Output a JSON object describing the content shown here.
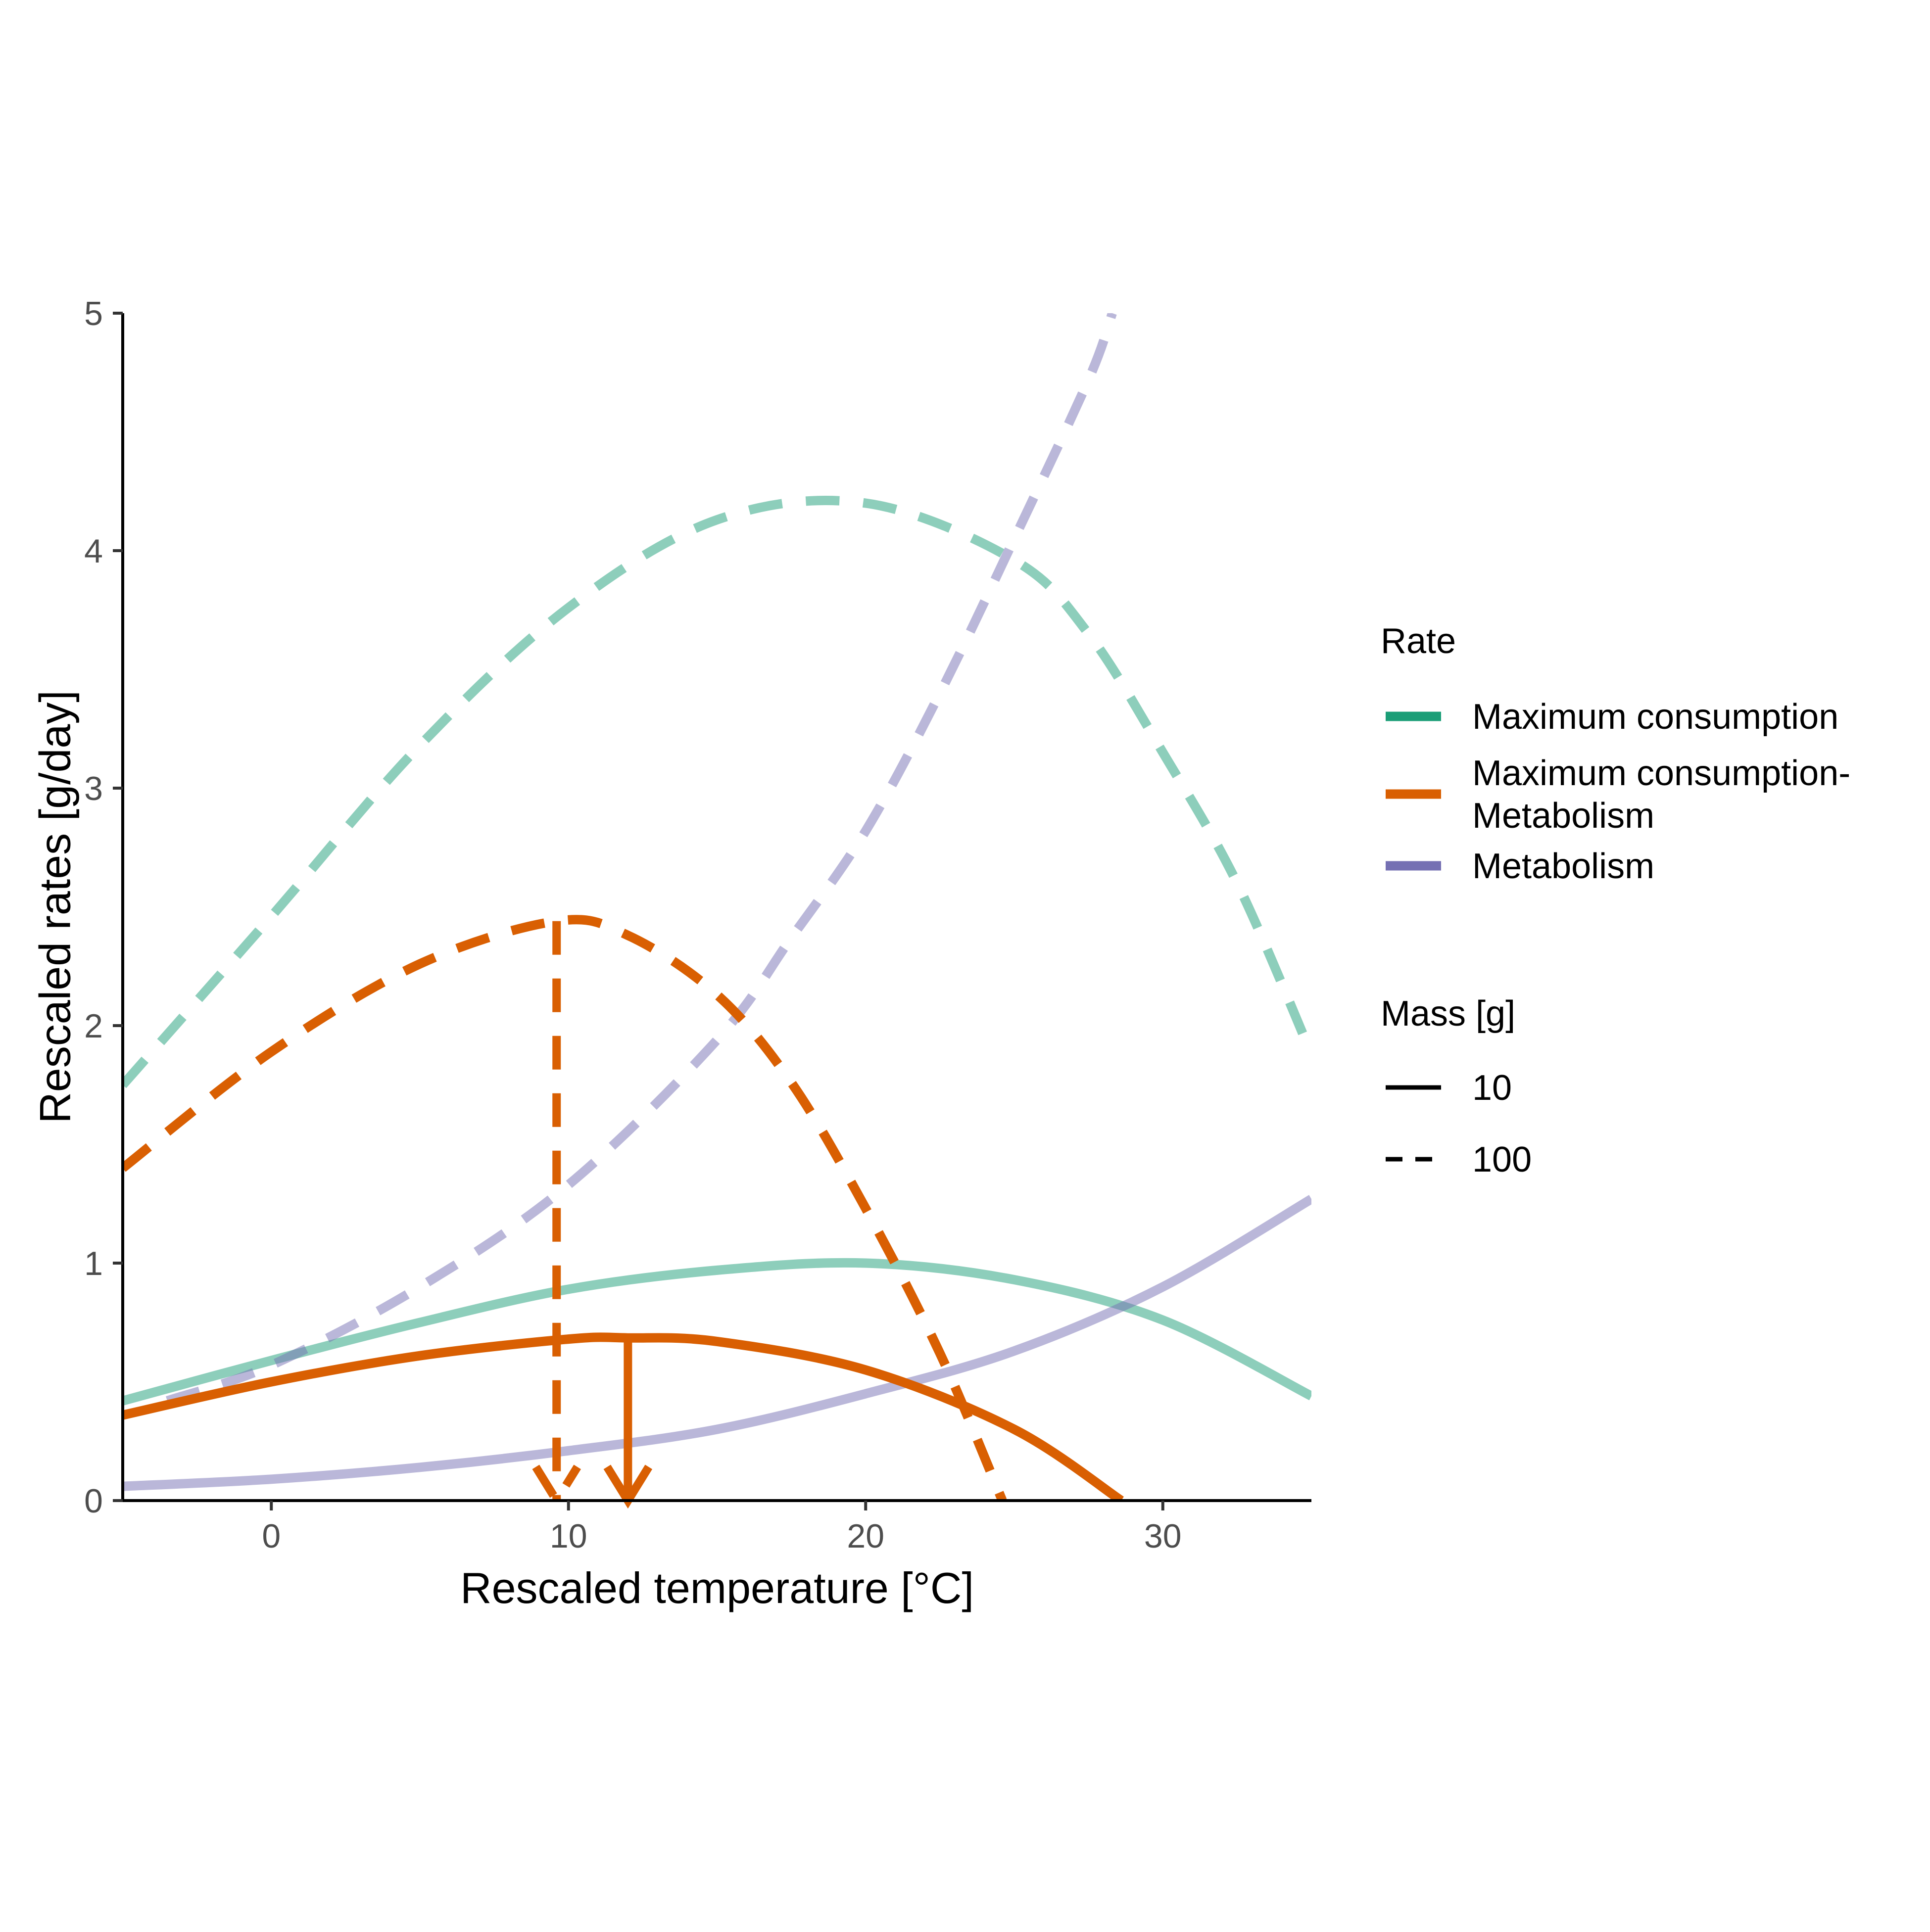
{
  "chart_data": {
    "type": "line",
    "title": "",
    "xlabel": "Rescaled temperature [°C]",
    "ylabel": "Rescaled rates [g/day]",
    "xlim": [
      -5,
      35
    ],
    "ylim": [
      0,
      5
    ],
    "x_ticks": [
      0,
      10,
      20,
      30
    ],
    "y_ticks": [
      0,
      1,
      2,
      3,
      4,
      5
    ],
    "grid": false,
    "legend_placement": "right",
    "colors": {
      "Maximum consumption": "#1b9e77",
      "Maximum consumption-Metabolism": "#d95f02",
      "Metabolism": "#7570b3"
    },
    "legends": {
      "rate": {
        "title": "Rate",
        "entries": [
          {
            "label": "Maximum consumption",
            "rate": "Maximum consumption"
          },
          {
            "label": "Maximum consumption-\nMetabolism",
            "rate": "Maximum consumption-Metabolism"
          },
          {
            "label": "Metabolism",
            "rate": "Metabolism"
          }
        ]
      },
      "mass": {
        "title": "Mass [g]",
        "entries": [
          {
            "label": "10",
            "linetype": "solid"
          },
          {
            "label": "100",
            "linetype": "dashed"
          }
        ]
      }
    },
    "series": [
      {
        "rate": "Maximum consumption",
        "mass": "10",
        "linetype": "solid",
        "alpha": 0.5,
        "x": [
          -5,
          0,
          5,
          10,
          15,
          20,
          25,
          30,
          35
        ],
        "y": [
          0.42,
          0.59,
          0.75,
          0.89,
          0.97,
          1.0,
          0.93,
          0.76,
          0.44
        ]
      },
      {
        "rate": "Maximum consumption",
        "mass": "100",
        "linetype": "dashed",
        "alpha": 0.5,
        "x": [
          -5,
          0,
          5,
          10,
          15,
          20,
          25,
          27.5,
          30,
          32.5,
          35
        ],
        "y": [
          1.75,
          2.46,
          3.18,
          3.76,
          4.13,
          4.2,
          3.96,
          3.65,
          3.15,
          2.6,
          1.88
        ]
      },
      {
        "rate": "Maximum consumption-Metabolism",
        "mass": "10",
        "linetype": "solid",
        "alpha": 1,
        "x": [
          -5,
          0,
          5,
          10,
          12,
          15,
          20,
          25,
          28.6
        ],
        "y": [
          0.36,
          0.5,
          0.61,
          0.68,
          0.685,
          0.67,
          0.55,
          0.3,
          0.0
        ]
      },
      {
        "rate": "Maximum consumption-Metabolism",
        "mass": "100",
        "linetype": "dashed",
        "alpha": 1,
        "x": [
          -5,
          0,
          5,
          9.6,
          12,
          15,
          17.5,
          20,
          22.5,
          24.6
        ],
        "y": [
          1.4,
          1.89,
          2.26,
          2.44,
          2.38,
          2.13,
          1.76,
          1.23,
          0.62,
          0.0
        ]
      },
      {
        "rate": "Metabolism",
        "mass": "10",
        "linetype": "solid",
        "alpha": 0.5,
        "x": [
          -5,
          0,
          5,
          10,
          15,
          20,
          25,
          30,
          35
        ],
        "y": [
          0.06,
          0.09,
          0.14,
          0.21,
          0.3,
          0.45,
          0.63,
          0.9,
          1.27
        ]
      },
      {
        "rate": "Metabolism",
        "mass": "100",
        "linetype": "dashed",
        "alpha": 0.5,
        "x": [
          -3.5,
          0,
          5,
          10,
          15,
          17.5,
          20,
          22.5,
          25,
          27.5,
          28.3
        ],
        "y": [
          0.42,
          0.57,
          0.9,
          1.33,
          1.94,
          2.37,
          2.82,
          3.4,
          4.05,
          4.72,
          5.0
        ]
      }
    ],
    "annotations": [
      {
        "type": "arrow",
        "rate": "Maximum consumption-Metabolism",
        "mass": "10",
        "linetype": "solid",
        "x": 12,
        "y_from": 0.685,
        "y_to": 0
      },
      {
        "type": "arrow",
        "rate": "Maximum consumption-Metabolism",
        "mass": "100",
        "linetype": "dashed",
        "x": 9.6,
        "y_from": 2.44,
        "y_to": 0
      }
    ]
  }
}
